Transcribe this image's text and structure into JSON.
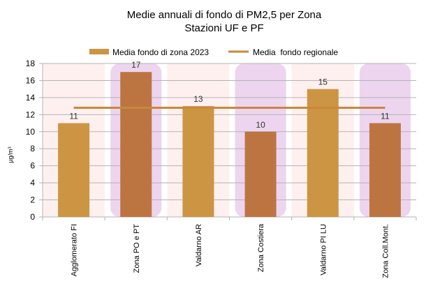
{
  "chart_data": {
    "type": "bar",
    "title": "Medie annuali di fondo di PM2,5 per Zona",
    "subtitle": "Stazioni UF e PF",
    "ylabel": "µg/m³",
    "xlabel": "",
    "ylim": [
      0,
      18
    ],
    "yticks": [
      0,
      2,
      4,
      6,
      8,
      10,
      12,
      14,
      16,
      18
    ],
    "grid": true,
    "legend_position": "top",
    "categories": [
      "Agglomerato FI",
      "Zona PO e PT",
      "Valdarno AR",
      "Zona Costiera",
      "Valdarno PI LU",
      "Zona Coll.Mont."
    ],
    "series": [
      {
        "name": "Media fondo di zona 2023",
        "type": "bar",
        "values": [
          11,
          17,
          13,
          10,
          15,
          11
        ],
        "data_labels": [
          "11",
          "17",
          "13",
          "10",
          "15",
          "11"
        ]
      },
      {
        "name": "Media  fondo regionale",
        "type": "line",
        "value": 12.8
      }
    ],
    "colors": {
      "bar_light": "#CC9544",
      "bar_dark": "#BC7541",
      "regional_line": "#C8883C",
      "band_pink": "#FFF0F0",
      "band_purple": "#EDD5EF",
      "grid": "#B3B3B3"
    }
  }
}
